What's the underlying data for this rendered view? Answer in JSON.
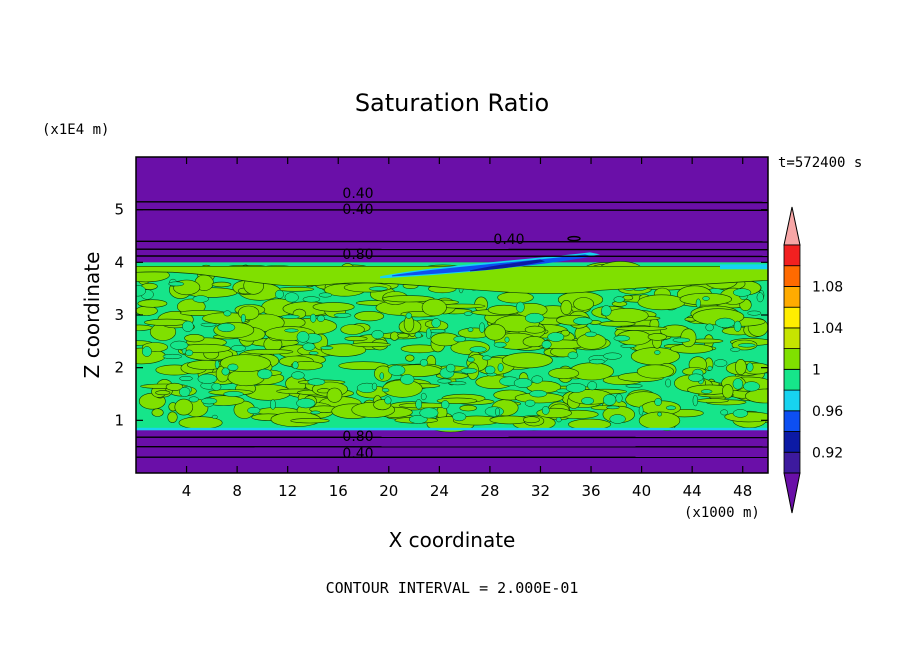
{
  "chart_data": {
    "type": "heatmap",
    "title": "Saturation Ratio",
    "xlabel": "X coordinate",
    "ylabel": "Z coordinate",
    "x_unit": "(x1000 m)",
    "y_unit": "(x1E4 m)",
    "time_label": "t=572400 s",
    "footer": "CONTOUR INTERVAL = 2.000E-01",
    "xlim": [
      0,
      50
    ],
    "ylim": [
      0,
      6
    ],
    "x_ticks": [
      "4",
      "8",
      "12",
      "16",
      "20",
      "24",
      "28",
      "32",
      "36",
      "40",
      "44",
      "48"
    ],
    "y_ticks": [
      "1",
      "2",
      "3",
      "4",
      "5"
    ],
    "colorbar": {
      "labels": [
        "1.08",
        "1.04",
        "1",
        "0.96",
        "0.92"
      ],
      "levels": [
        0.9,
        0.92,
        0.94,
        0.96,
        0.98,
        1.0,
        1.02,
        1.04,
        1.06,
        1.08,
        1.1
      ],
      "colors": [
        "#3d1a9e",
        "#0c1aa5",
        "#0d4ff2",
        "#17d3f0",
        "#16e58a",
        "#80e000",
        "#c6e400",
        "#ffee00",
        "#ffab00",
        "#ff6a00",
        "#f22020"
      ],
      "under_color": "#6a0fa8",
      "over_color": "#f7a6a6"
    },
    "contour_labels": [
      "0.40",
      "0.40",
      "0.40",
      "0.80",
      "0.80",
      "0.40"
    ],
    "field_zones": [
      {
        "z_range": [
          0.0,
          0.82
        ],
        "value": 0.3
      },
      {
        "z_range": [
          0.82,
          4.0
        ],
        "value": 0.99
      },
      {
        "z_range": [
          4.0,
          6.0
        ],
        "value": 0.3
      }
    ],
    "colors": {
      "background": "#ffffff",
      "dry": "#6a0fa8",
      "moist_low": "#16e58a",
      "moist_high": "#80e000"
    }
  }
}
